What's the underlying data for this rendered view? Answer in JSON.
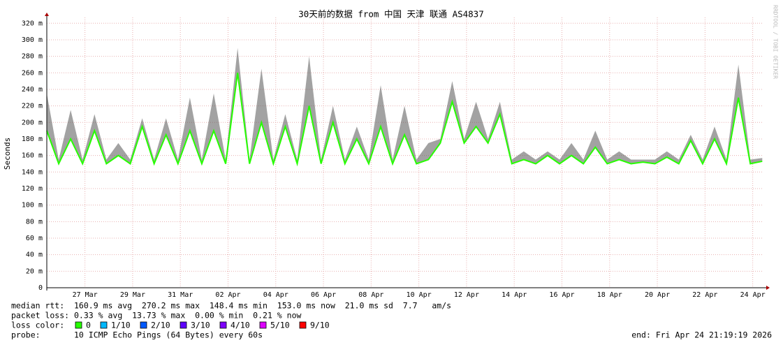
{
  "chart_data": {
    "type": "smokeping",
    "title": "30天前的数据 from  中国 天津 联通 AS4837",
    "y_label": "Seconds",
    "side_note": "RRDTOOL / TOBI OETIKER",
    "xlim": [
      25.4,
      55.45
    ],
    "xticks": [
      {
        "value": 27,
        "label": "27 Mar"
      },
      {
        "value": 29,
        "label": "29 Mar"
      },
      {
        "value": 31,
        "label": "31 Mar"
      },
      {
        "value": 33,
        "label": "02 Apr"
      },
      {
        "value": 35,
        "label": "04 Apr"
      },
      {
        "value": 37,
        "label": "06 Apr"
      },
      {
        "value": 39,
        "label": "08 Apr"
      },
      {
        "value": 41,
        "label": "10 Apr"
      },
      {
        "value": 43,
        "label": "12 Apr"
      },
      {
        "value": 45,
        "label": "14 Apr"
      },
      {
        "value": 47,
        "label": "16 Apr"
      },
      {
        "value": 49,
        "label": "18 Apr"
      },
      {
        "value": 51,
        "label": "20 Apr"
      },
      {
        "value": 53,
        "label": "22 Apr"
      },
      {
        "value": 55,
        "label": "24 Apr"
      }
    ],
    "ylim": [
      0,
      327
    ],
    "yticks": [
      0,
      {
        "value": 20,
        "label": "20 m"
      },
      {
        "value": 40,
        "label": "40 m"
      },
      {
        "value": 60,
        "label": "60 m"
      },
      {
        "value": 80,
        "label": "80 m"
      },
      {
        "value": 100,
        "label": "100 m"
      },
      {
        "value": 120,
        "label": "120 m"
      },
      {
        "value": 140,
        "label": "140 m"
      },
      {
        "value": 160,
        "label": "160 m"
      },
      {
        "value": 180,
        "label": "180 m"
      },
      {
        "value": 200,
        "label": "200 m"
      },
      {
        "value": 220,
        "label": "220 m"
      },
      {
        "value": 240,
        "label": "240 m"
      },
      {
        "value": 260,
        "label": "260 m"
      },
      {
        "value": 280,
        "label": "280 m"
      },
      {
        "value": 300,
        "label": "300 m"
      },
      {
        "value": 320,
        "label": "320 m"
      }
    ],
    "grid": true,
    "x": [
      25.4,
      25.9,
      26.4,
      26.9,
      27.4,
      27.9,
      28.4,
      28.9,
      29.4,
      29.9,
      30.4,
      30.9,
      31.4,
      31.9,
      32.4,
      32.9,
      33.4,
      33.9,
      34.4,
      34.9,
      35.4,
      35.9,
      36.4,
      36.9,
      37.4,
      37.9,
      38.4,
      38.9,
      39.4,
      39.9,
      40.4,
      40.9,
      41.4,
      41.9,
      42.4,
      42.9,
      43.4,
      43.9,
      44.4,
      44.9,
      45.4,
      45.9,
      46.4,
      46.9,
      47.4,
      47.9,
      48.4,
      48.9,
      49.4,
      49.9,
      50.4,
      50.9,
      51.4,
      51.9,
      52.4,
      52.9,
      53.4,
      53.9,
      54.4,
      54.9,
      55.4
    ],
    "series": [
      {
        "name": "max",
        "color": "#555555",
        "values": [
          235,
          155,
          215,
          155,
          210,
          155,
          175,
          155,
          205,
          155,
          205,
          155,
          230,
          155,
          235,
          155,
          290,
          155,
          265,
          155,
          210,
          155,
          280,
          155,
          220,
          155,
          195,
          155,
          245,
          155,
          220,
          155,
          175,
          180,
          250,
          180,
          225,
          180,
          225,
          155,
          165,
          155,
          165,
          155,
          175,
          155,
          190,
          155,
          165,
          155,
          155,
          155,
          165,
          155,
          185,
          155,
          195,
          155,
          270,
          155,
          157
        ]
      },
      {
        "name": "median",
        "color": "#26ff00",
        "values": [
          190,
          150,
          180,
          150,
          190,
          150,
          160,
          150,
          195,
          150,
          185,
          150,
          190,
          150,
          190,
          150,
          260,
          150,
          200,
          150,
          195,
          150,
          220,
          150,
          200,
          150,
          180,
          150,
          195,
          150,
          185,
          150,
          155,
          175,
          225,
          175,
          195,
          175,
          210,
          150,
          155,
          150,
          160,
          150,
          160,
          150,
          170,
          150,
          155,
          150,
          152,
          150,
          158,
          150,
          178,
          150,
          180,
          150,
          230,
          150,
          153
        ]
      }
    ],
    "stats": {
      "median_rtt": "median rtt:  160.9 ms avg  270.2 ms max  148.4 ms min  153.0 ms now  21.0 ms sd  7.7   am/s",
      "packet_loss": "packet loss: 0.33 % avg  13.73 % max  0.00 % min  0.21 % now",
      "loss_color_label": "loss color:",
      "loss_colors": [
        {
          "label": "0",
          "color": "#26ff00"
        },
        {
          "label": "1/10",
          "color": "#00b8ff"
        },
        {
          "label": "2/10",
          "color": "#0059ff"
        },
        {
          "label": "3/10",
          "color": "#5e00ff"
        },
        {
          "label": "4/10",
          "color": "#7e00ff"
        },
        {
          "label": "5/10",
          "color": "#dd00ff"
        },
        {
          "label": "9/10",
          "color": "#ff0000"
        }
      ],
      "probe": "probe:       10 ICMP Echo Pings (64 Bytes) every 60s",
      "end": "end: Fri Apr 24 21:19:19 2026"
    }
  }
}
